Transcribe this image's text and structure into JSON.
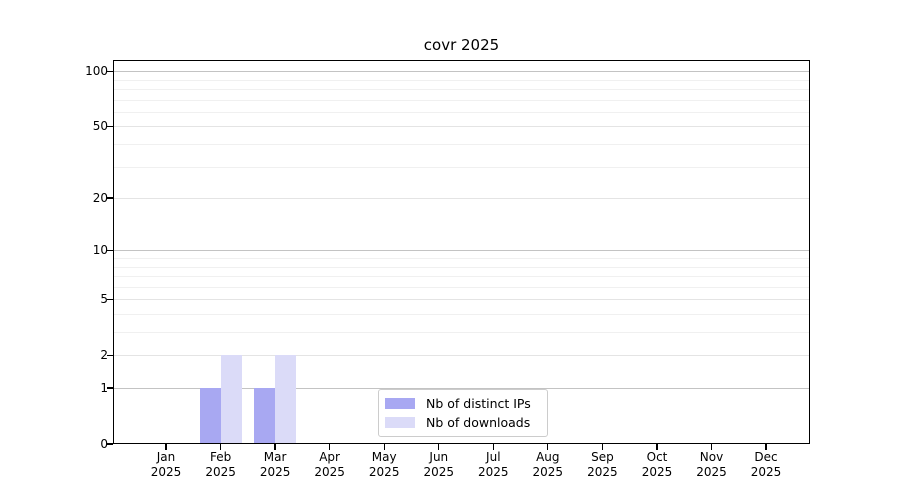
{
  "chart_data": {
    "type": "bar",
    "title": "covr 2025",
    "categories": [
      {
        "month": "Jan",
        "year": "2025"
      },
      {
        "month": "Feb",
        "year": "2025"
      },
      {
        "month": "Mar",
        "year": "2025"
      },
      {
        "month": "Apr",
        "year": "2025"
      },
      {
        "month": "May",
        "year": "2025"
      },
      {
        "month": "Jun",
        "year": "2025"
      },
      {
        "month": "Jul",
        "year": "2025"
      },
      {
        "month": "Aug",
        "year": "2025"
      },
      {
        "month": "Sep",
        "year": "2025"
      },
      {
        "month": "Oct",
        "year": "2025"
      },
      {
        "month": "Nov",
        "year": "2025"
      },
      {
        "month": "Dec",
        "year": "2025"
      }
    ],
    "series": [
      {
        "name": "Nb of distinct IPs",
        "color": "#a8a8f2",
        "values": [
          0,
          1,
          1,
          0,
          0,
          0,
          0,
          0,
          0,
          0,
          0,
          0
        ]
      },
      {
        "name": "Nb of downloads",
        "color": "#dbdbf8",
        "values": [
          0,
          2,
          2,
          0,
          0,
          0,
          0,
          0,
          0,
          0,
          0,
          0
        ]
      }
    ],
    "y_axis": {
      "scale": "log10(1+value)",
      "ticks": [
        0,
        1,
        2,
        5,
        10,
        20,
        50,
        100
      ],
      "decade_ticks": [
        1,
        10,
        100
      ],
      "minor_ticks": [
        3,
        4,
        6,
        7,
        8,
        9,
        30,
        40,
        60,
        70,
        80,
        90
      ],
      "max": 115
    },
    "legend": {
      "position": "inside lower center"
    },
    "grid": true
  }
}
